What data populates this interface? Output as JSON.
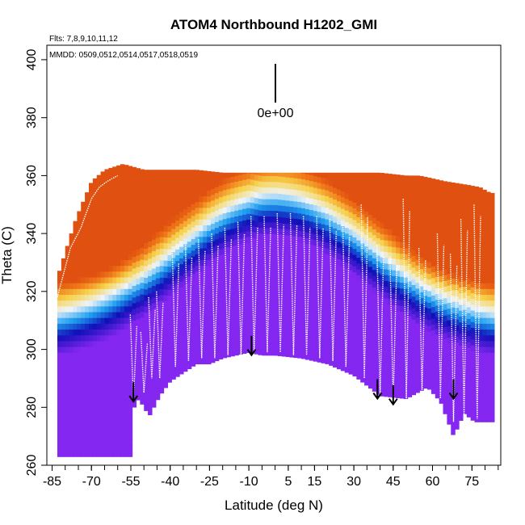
{
  "chart_data": {
    "type": "heatmap",
    "title": "ATOM4 Northbound H1202_GMI",
    "xlabel": "Latitude (deg N)",
    "ylabel": "Theta (C)",
    "xlim": [
      -87,
      86
    ],
    "ylim": [
      260,
      405
    ],
    "x_ticks": [
      -85,
      -70,
      -55,
      -40,
      -25,
      -10,
      5,
      15,
      30,
      45,
      60,
      75
    ],
    "x_tick_labels": [
      "-85",
      "-70",
      "-55",
      "-40",
      "-25",
      "-10",
      "5",
      "15",
      "30",
      "45",
      "60",
      "75"
    ],
    "y_ticks": [
      260,
      280,
      300,
      320,
      340,
      360,
      380,
      400
    ],
    "y_tick_labels": [
      "260",
      "280",
      "300",
      "320",
      "340",
      "360",
      "380",
      "400"
    ],
    "annotations": {
      "flights": "Flts: 7,8,9,10,11,12",
      "dates": "MMDD: 0509,0512,0514,0517,0518,0519",
      "scale_label": "0e+00"
    },
    "arrows": [
      {
        "lat": -54,
        "theta": 282
      },
      {
        "lat": -9,
        "theta": 298
      },
      {
        "lat": 39,
        "theta": 283
      },
      {
        "lat": 45,
        "theta": 281
      },
      {
        "lat": 68,
        "theta": 283
      }
    ],
    "colors": {
      "low": "#8427f0",
      "mid_low": "#1010b8",
      "mid": "#1ea0f0",
      "light": "#eef4fb",
      "high_yellow": "#f7d24a",
      "high_orange": "#f07818",
      "high_red": "#e05010",
      "flight_track": "#ffffff"
    },
    "floor_theta_profile": {
      "lat": [
        -82,
        -55,
        -55,
        -52,
        -48,
        -44,
        -40,
        -30,
        -25,
        -20,
        -10,
        -5,
        0,
        10,
        20,
        30,
        40,
        50,
        58,
        63,
        68,
        72,
        76
      ],
      "theta": [
        263,
        263,
        278,
        283,
        277,
        284,
        289,
        295,
        295,
        297,
        299,
        298,
        298,
        297,
        295,
        291,
        284,
        283,
        287,
        282,
        270,
        278,
        275
      ]
    },
    "top_theta_profile": {
      "lat": [
        -83,
        -76,
        -70,
        -65,
        -58,
        -50,
        -30,
        -20,
        -5,
        0,
        20,
        40,
        50,
        55,
        60,
        65,
        72,
        78,
        82
      ],
      "theta": [
        325,
        345,
        358,
        362,
        364,
        362,
        362,
        361,
        361,
        361,
        361,
        361,
        360,
        360,
        359,
        358,
        357,
        356,
        354
      ]
    }
  }
}
